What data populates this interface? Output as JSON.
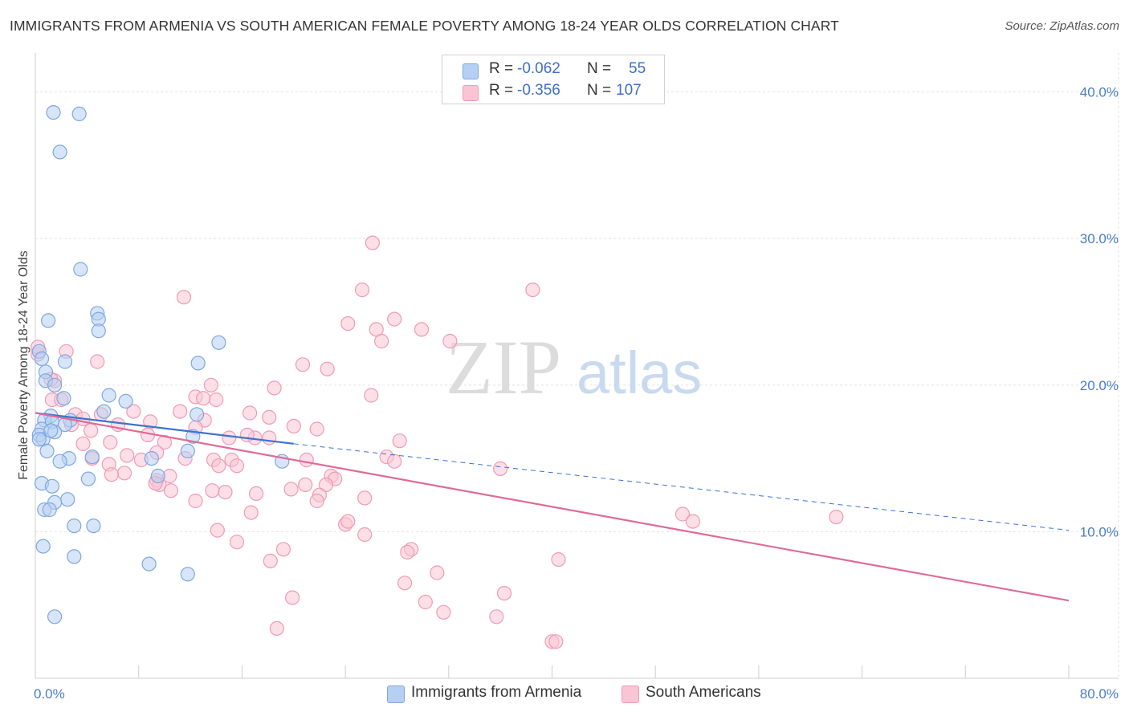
{
  "title": "IMMIGRANTS FROM ARMENIA VS SOUTH AMERICAN FEMALE POVERTY AMONG 18-24 YEAR OLDS CORRELATION CHART",
  "source": "Source: ZipAtlas.com",
  "watermark": {
    "zip": "ZIP",
    "atlas": "atlas"
  },
  "legend": {
    "r_label": "R =",
    "n_label": "N =",
    "items": [
      {
        "r": "-0.062",
        "n": "55",
        "fill": "#b6d0f3",
        "stroke": "#7fa7e0"
      },
      {
        "r": "-0.356",
        "n": "107",
        "fill": "#f9c4d4",
        "stroke": "#ef9bb6"
      }
    ]
  },
  "chart_data": {
    "type": "scatter",
    "title": "IMMIGRANTS FROM ARMENIA VS SOUTH AMERICAN FEMALE POVERTY AMONG 18-24 YEAR OLDS CORRELATION CHART",
    "xlabel": "",
    "ylabel": "Female Poverty Among 18-24 Year Olds",
    "xlim": [
      0,
      80
    ],
    "ylim": [
      0,
      42
    ],
    "x_tick_labels": [
      "0.0%",
      "80.0%"
    ],
    "y_ticks": [
      {
        "value": 10,
        "label": "10.0%"
      },
      {
        "value": 20,
        "label": "20.0%"
      },
      {
        "value": 30,
        "label": "30.0%"
      },
      {
        "value": 40,
        "label": "40.0%"
      }
    ],
    "grid": true,
    "legend_position": "top-center",
    "series": [
      {
        "name": "Immigrants from Armenia",
        "color": "#7fa7e0",
        "fill": "#b6d0f3",
        "trend": {
          "x": [
            0,
            20
          ],
          "y": [
            18.1,
            16.0
          ],
          "dashed_to_x": 80,
          "dashed_to_y": 10.1,
          "color": "#3a73d0"
        },
        "points": [
          [
            1.4,
            38.6
          ],
          [
            3.4,
            38.5
          ],
          [
            1.9,
            35.9
          ],
          [
            3.5,
            27.9
          ],
          [
            1.0,
            24.4
          ],
          [
            4.8,
            24.9
          ],
          [
            4.9,
            24.5
          ],
          [
            4.9,
            23.7
          ],
          [
            14.2,
            22.9
          ],
          [
            0.3,
            22.3
          ],
          [
            0.5,
            21.8
          ],
          [
            2.3,
            21.6
          ],
          [
            12.6,
            21.5
          ],
          [
            0.8,
            20.9
          ],
          [
            0.8,
            20.3
          ],
          [
            1.5,
            20.0
          ],
          [
            2.2,
            19.1
          ],
          [
            5.7,
            19.3
          ],
          [
            7.0,
            18.9
          ],
          [
            5.3,
            18.2
          ],
          [
            12.5,
            18.0
          ],
          [
            1.2,
            17.9
          ],
          [
            2.7,
            17.6
          ],
          [
            0.7,
            17.6
          ],
          [
            1.3,
            17.5
          ],
          [
            2.3,
            17.3
          ],
          [
            0.5,
            17.0
          ],
          [
            1.5,
            16.8
          ],
          [
            0.3,
            16.6
          ],
          [
            12.2,
            16.5
          ],
          [
            0.6,
            16.3
          ],
          [
            0.3,
            16.3
          ],
          [
            0.9,
            15.5
          ],
          [
            11.8,
            15.5
          ],
          [
            4.4,
            15.1
          ],
          [
            2.6,
            15.0
          ],
          [
            9.0,
            15.0
          ],
          [
            1.9,
            14.8
          ],
          [
            19.1,
            14.8
          ],
          [
            4.1,
            13.6
          ],
          [
            9.5,
            13.8
          ],
          [
            0.5,
            13.3
          ],
          [
            1.3,
            13.1
          ],
          [
            2.5,
            12.2
          ],
          [
            1.5,
            12.0
          ],
          [
            0.7,
            11.5
          ],
          [
            1.1,
            11.5
          ],
          [
            3.0,
            10.4
          ],
          [
            4.5,
            10.4
          ],
          [
            0.6,
            9.0
          ],
          [
            3.0,
            8.3
          ],
          [
            8.8,
            7.8
          ],
          [
            11.8,
            7.1
          ],
          [
            1.5,
            4.2
          ],
          [
            1.2,
            16.9
          ]
        ]
      },
      {
        "name": "South Americans",
        "color": "#ef9bb6",
        "fill": "#f9c4d4",
        "trend": {
          "x": [
            0,
            80
          ],
          "y": [
            18.1,
            5.3
          ],
          "color": "#e06a96"
        },
        "points": [
          [
            0.2,
            22.1
          ],
          [
            1.5,
            20.3
          ],
          [
            1.3,
            19.0
          ],
          [
            2.4,
            22.3
          ],
          [
            4.8,
            21.6
          ],
          [
            11.5,
            26.0
          ],
          [
            26.1,
            29.7
          ],
          [
            25.3,
            26.5
          ],
          [
            38.5,
            26.5
          ],
          [
            24.2,
            24.2
          ],
          [
            27.8,
            24.5
          ],
          [
            26.4,
            23.8
          ],
          [
            29.9,
            23.8
          ],
          [
            26.8,
            23.0
          ],
          [
            32.1,
            23.0
          ],
          [
            20.7,
            21.4
          ],
          [
            22.6,
            21.1
          ],
          [
            13.6,
            20.0
          ],
          [
            18.5,
            19.8
          ],
          [
            26.0,
            19.3
          ],
          [
            12.4,
            19.2
          ],
          [
            14.0,
            19.0
          ],
          [
            13.0,
            19.1
          ],
          [
            3.1,
            18.0
          ],
          [
            3.7,
            17.7
          ],
          [
            7.6,
            18.2
          ],
          [
            11.2,
            18.2
          ],
          [
            16.6,
            18.1
          ],
          [
            18.1,
            17.8
          ],
          [
            8.9,
            17.5
          ],
          [
            13.1,
            17.6
          ],
          [
            20.0,
            17.2
          ],
          [
            21.8,
            17.0
          ],
          [
            4.3,
            16.9
          ],
          [
            6.4,
            17.3
          ],
          [
            2.8,
            17.3
          ],
          [
            8.7,
            16.6
          ],
          [
            12.4,
            17.1
          ],
          [
            17.0,
            16.4
          ],
          [
            18.1,
            16.4
          ],
          [
            28.2,
            16.2
          ],
          [
            5.8,
            16.1
          ],
          [
            10.0,
            16.1
          ],
          [
            3.7,
            16.0
          ],
          [
            7.1,
            15.2
          ],
          [
            4.4,
            15.0
          ],
          [
            9.4,
            15.4
          ],
          [
            11.6,
            15.0
          ],
          [
            13.8,
            14.9
          ],
          [
            15.2,
            14.9
          ],
          [
            21.0,
            14.9
          ],
          [
            27.2,
            15.1
          ],
          [
            27.8,
            14.8
          ],
          [
            5.7,
            14.6
          ],
          [
            8.2,
            14.9
          ],
          [
            14.2,
            14.5
          ],
          [
            15.6,
            14.5
          ],
          [
            36.0,
            14.3
          ],
          [
            6.9,
            14.0
          ],
          [
            5.9,
            13.9
          ],
          [
            10.4,
            13.8
          ],
          [
            22.9,
            13.8
          ],
          [
            9.4,
            13.5
          ],
          [
            9.6,
            13.2
          ],
          [
            23.2,
            13.6
          ],
          [
            22.5,
            13.2
          ],
          [
            20.9,
            13.2
          ],
          [
            13.7,
            12.8
          ],
          [
            14.7,
            12.7
          ],
          [
            17.1,
            12.6
          ],
          [
            19.8,
            12.9
          ],
          [
            22.0,
            12.5
          ],
          [
            10.5,
            12.8
          ],
          [
            12.4,
            12.1
          ],
          [
            21.8,
            12.1
          ],
          [
            25.5,
            12.3
          ],
          [
            16.7,
            11.3
          ],
          [
            24.0,
            10.5
          ],
          [
            24.2,
            10.7
          ],
          [
            50.1,
            11.2
          ],
          [
            50.9,
            10.7
          ],
          [
            62.0,
            11.0
          ],
          [
            14.1,
            10.1
          ],
          [
            15.6,
            9.3
          ],
          [
            25.5,
            9.8
          ],
          [
            19.2,
            8.8
          ],
          [
            18.2,
            8.0
          ],
          [
            29.1,
            8.8
          ],
          [
            28.8,
            8.6
          ],
          [
            40.5,
            8.1
          ],
          [
            31.1,
            7.2
          ],
          [
            28.6,
            6.5
          ],
          [
            36.3,
            5.8
          ],
          [
            19.9,
            5.5
          ],
          [
            30.2,
            5.2
          ],
          [
            31.6,
            4.5
          ],
          [
            35.7,
            4.2
          ],
          [
            18.7,
            3.4
          ],
          [
            40.0,
            2.5
          ],
          [
            40.3,
            2.5
          ],
          [
            0.2,
            22.6
          ],
          [
            1.2,
            20.4
          ],
          [
            2.0,
            19.0
          ],
          [
            5.1,
            18.0
          ],
          [
            9.3,
            13.3
          ],
          [
            16.4,
            16.6
          ],
          [
            15.0,
            16.4
          ]
        ]
      }
    ]
  },
  "bottom_legend": [
    "Immigrants from Armenia",
    "South Americans"
  ]
}
